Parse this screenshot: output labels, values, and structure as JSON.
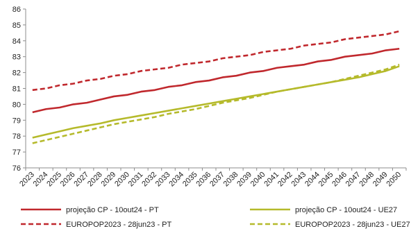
{
  "chart_data": {
    "type": "line",
    "x": [
      "2023",
      "2024",
      "2025",
      "2026",
      "2027",
      "2028",
      "2029",
      "2030",
      "2031",
      "2032",
      "2033",
      "2034",
      "2035",
      "2036",
      "2037",
      "2038",
      "2039",
      "2040",
      "2041",
      "2042",
      "2043",
      "2044",
      "2045",
      "2046",
      "2047",
      "2048",
      "2049",
      "2050"
    ],
    "ylim": [
      76,
      86
    ],
    "yticks": [
      76,
      77,
      78,
      79,
      80,
      81,
      82,
      83,
      84,
      85,
      86
    ],
    "grid": false,
    "legend_position": "bottom",
    "series": [
      {
        "name": "projeção CP - 10out24 - PT",
        "color": "#C0282D",
        "dash": "solid",
        "values": [
          79.5,
          79.7,
          79.8,
          80.0,
          80.1,
          80.3,
          80.5,
          80.6,
          80.8,
          80.9,
          81.1,
          81.2,
          81.4,
          81.5,
          81.7,
          81.8,
          82.0,
          82.1,
          82.3,
          82.4,
          82.5,
          82.7,
          82.8,
          83.0,
          83.1,
          83.2,
          83.4,
          83.5
        ]
      },
      {
        "name": "projeção CP - 10out24 - UE27",
        "color": "#B5BA2B",
        "dash": "solid",
        "values": [
          77.9,
          78.1,
          78.3,
          78.5,
          78.65,
          78.8,
          79.0,
          79.15,
          79.3,
          79.45,
          79.6,
          79.75,
          79.9,
          80.05,
          80.2,
          80.35,
          80.5,
          80.65,
          80.8,
          80.95,
          81.1,
          81.25,
          81.4,
          81.55,
          81.7,
          81.9,
          82.1,
          82.4
        ]
      },
      {
        "name": "EUROPOP2023 - 28jun23 - PT",
        "color": "#C0282D",
        "dash": "dashed",
        "values": [
          80.9,
          81.0,
          81.2,
          81.3,
          81.5,
          81.6,
          81.8,
          81.9,
          82.1,
          82.2,
          82.3,
          82.5,
          82.6,
          82.7,
          82.9,
          83.0,
          83.1,
          83.3,
          83.4,
          83.5,
          83.7,
          83.8,
          83.9,
          84.1,
          84.2,
          84.3,
          84.4,
          84.6
        ]
      },
      {
        "name": "EUROPOP2023 - 28jun23 - UE27",
        "color": "#B5BA2B",
        "dash": "dashed",
        "values": [
          77.55,
          77.75,
          77.95,
          78.15,
          78.35,
          78.55,
          78.75,
          78.9,
          79.05,
          79.2,
          79.4,
          79.55,
          79.7,
          79.9,
          80.1,
          80.25,
          80.4,
          80.6,
          80.8,
          80.95,
          81.1,
          81.25,
          81.4,
          81.6,
          81.8,
          82.0,
          82.2,
          82.5
        ]
      }
    ]
  }
}
